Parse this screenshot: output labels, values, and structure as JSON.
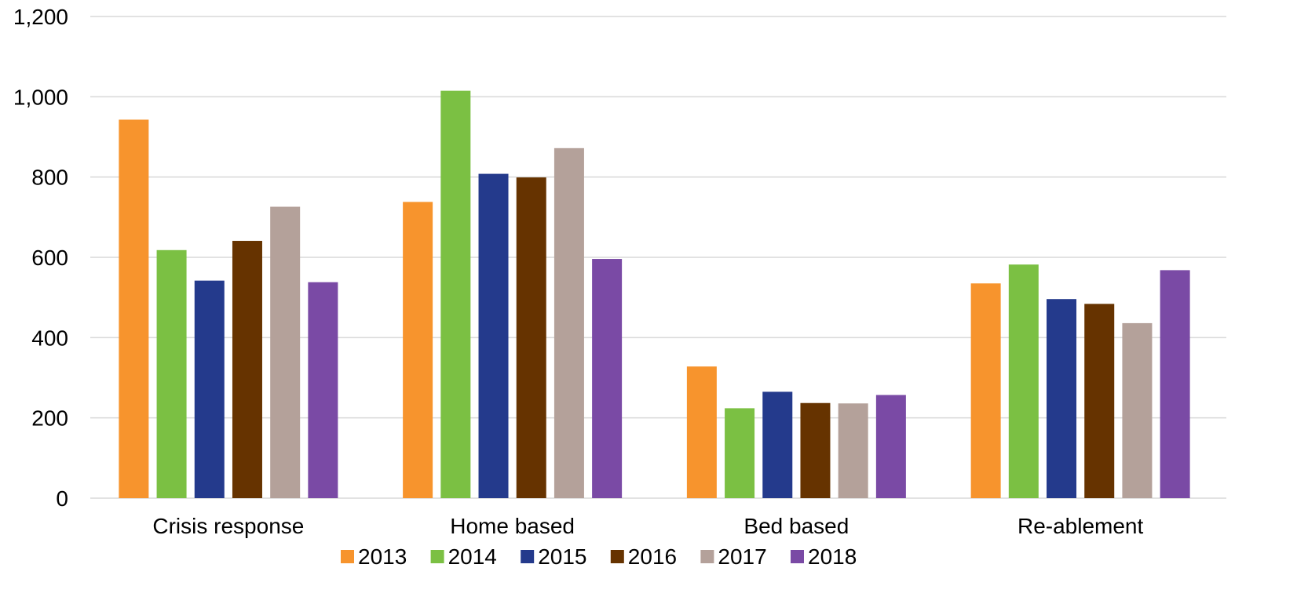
{
  "chart_data": {
    "type": "bar",
    "categories": [
      "Crisis response",
      "Home based",
      "Bed based",
      "Re-ablement"
    ],
    "series": [
      {
        "name": "2013",
        "color": "#F7942D",
        "values": [
          943,
          738,
          328,
          535
        ]
      },
      {
        "name": "2014",
        "color": "#7BC043",
        "values": [
          618,
          1015,
          224,
          582
        ]
      },
      {
        "name": "2015",
        "color": "#243A8C",
        "values": [
          542,
          808,
          265,
          496
        ]
      },
      {
        "name": "2016",
        "color": "#663300",
        "values": [
          641,
          799,
          237,
          484
        ]
      },
      {
        "name": "2017",
        "color": "#B4A19A",
        "values": [
          726,
          872,
          236,
          436
        ]
      },
      {
        "name": "2018",
        "color": "#7A4AA5",
        "values": [
          538,
          596,
          257,
          568
        ]
      }
    ],
    "yticks": [
      "0",
      "200",
      "400",
      "600",
      "800",
      "1,000",
      "1,200"
    ],
    "ylim": [
      0,
      1200
    ],
    "grid": true,
    "legend_position": "bottom",
    "gridline_color": "#D9D9D9"
  }
}
